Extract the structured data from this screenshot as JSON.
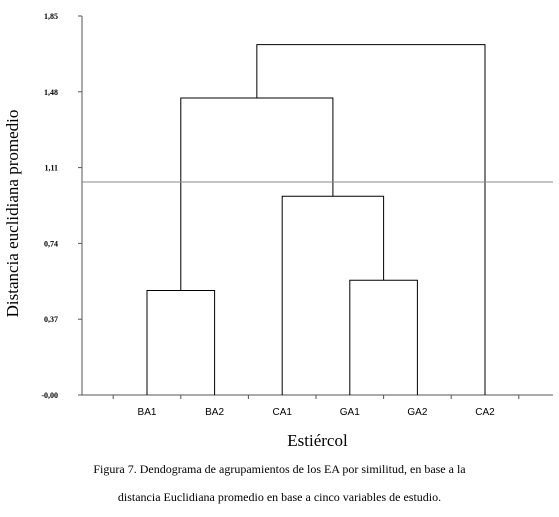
{
  "caption": {
    "line1": "Figura 7. Dendograma de agrupamientos de los EA por similitud, en base a la",
    "line2": "distancia Euclidiana promedio en base a cinco variables de estudio."
  },
  "chart_data": {
    "type": "dendrogram",
    "title": "",
    "xlabel": "Estiércol",
    "ylabel": "Distancia euclidiana promedio",
    "ylim": [
      0,
      1.85
    ],
    "yticks": [
      {
        "value": 0.0,
        "label": "-0,00"
      },
      {
        "value": 0.37,
        "label": "0,37"
      },
      {
        "value": 0.74,
        "label": "0,74"
      },
      {
        "value": 1.11,
        "label": "1,11"
      },
      {
        "value": 1.48,
        "label": "1,48"
      },
      {
        "value": 1.85,
        "label": "1,85"
      }
    ],
    "leaves": [
      "BA1",
      "BA2",
      "CA1",
      "GA1",
      "GA2",
      "CA2"
    ],
    "merges": [
      {
        "left": "BA1",
        "right": "BA2",
        "height": 0.51
      },
      {
        "left": "GA1",
        "right": "GA2",
        "height": 0.56
      },
      {
        "left": "CA1",
        "right": "GA1+GA2",
        "height": 0.97
      },
      {
        "left": "BA1+BA2",
        "right": "CA1+GA1+GA2",
        "height": 1.45
      },
      {
        "left": "BA1+BA2+CA1+GA1+GA2",
        "right": "CA2",
        "height": 1.71
      }
    ],
    "cut_line": 1.04,
    "grid": false
  }
}
